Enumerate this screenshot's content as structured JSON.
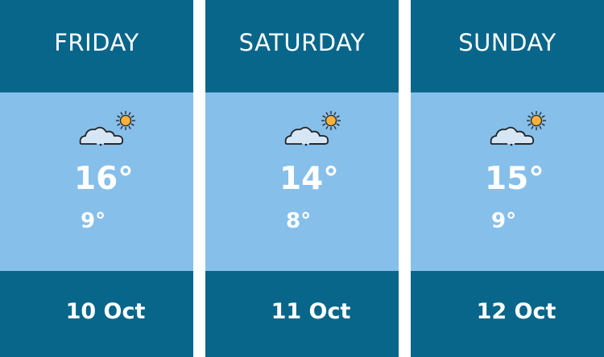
{
  "colors": {
    "header": "#07668a",
    "body": "#86bfea",
    "cloud": "#d6e6f5",
    "sun": "#f7b13c"
  },
  "days": [
    {
      "name": "FRIDAY",
      "high": "16°",
      "low": "9°",
      "date": "10 Oct",
      "icon": "partly-cloudy-icon"
    },
    {
      "name": "SATURDAY",
      "high": "14°",
      "low": "8°",
      "date": "11 Oct",
      "icon": "partly-cloudy-icon"
    },
    {
      "name": "SUNDAY",
      "high": "15°",
      "low": "9°",
      "date": "12 Oct",
      "icon": "partly-cloudy-icon"
    }
  ]
}
